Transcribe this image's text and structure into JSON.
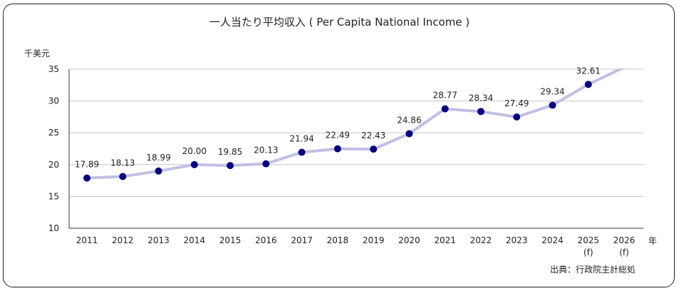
{
  "chart_data": {
    "type": "line",
    "title": "一人当たり平均収入 ( Per Capita National Income )",
    "ylabel": "千美元",
    "xlabel": "年",
    "source": "出典：行政院主計総処",
    "categories": [
      "2011",
      "2012",
      "2013",
      "2014",
      "2015",
      "2016",
      "2017",
      "2018",
      "2019",
      "2020",
      "2021",
      "2022",
      "2023",
      "2024",
      "2025\n(f)",
      "2026\n(f)"
    ],
    "values": [
      17.89,
      18.13,
      18.99,
      20.0,
      19.85,
      20.13,
      21.94,
      22.49,
      22.43,
      24.86,
      28.77,
      28.34,
      27.49,
      29.34,
      32.61,
      35.3
    ],
    "data_labels": [
      "17.89",
      "18.13",
      "18.99",
      "20.00",
      "19.85",
      "20.13",
      "21.94",
      "22.49",
      "22.43",
      "24.86",
      "28.77",
      "28.34",
      "27.49",
      "29.34",
      "32.61",
      ""
    ],
    "ylim": [
      10,
      35
    ],
    "yticks": [
      10,
      15,
      20,
      25,
      30,
      35
    ],
    "grid": true,
    "colors": {
      "line": "#c0c0e4",
      "marker": "#000080",
      "grid": "#c8c8c8",
      "axis": "#333333"
    }
  }
}
